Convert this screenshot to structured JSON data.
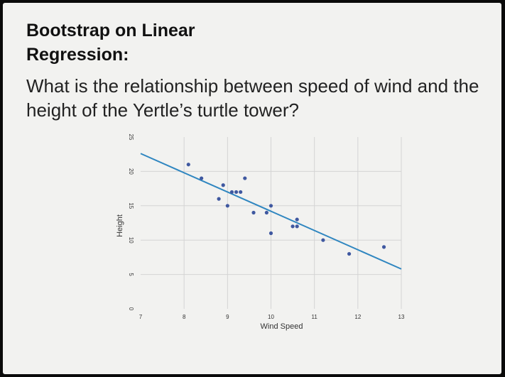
{
  "slide": {
    "title_line1": "Bootstrap on Linear",
    "title_line2": "Regression:",
    "question": "What is the relationship between speed of wind and the height of the Yertle’s turtle tower?"
  },
  "chart_data": {
    "type": "scatter",
    "xlabel": "Wind Speed",
    "ylabel": "Height",
    "xlim": [
      7,
      13
    ],
    "ylim": [
      0,
      25
    ],
    "x_ticks": [
      7,
      8,
      9,
      10,
      11,
      12,
      13
    ],
    "y_ticks": [
      0,
      5,
      10,
      15,
      20,
      25
    ],
    "grid": true,
    "points": [
      {
        "x": 8.1,
        "y": 21
      },
      {
        "x": 8.4,
        "y": 19
      },
      {
        "x": 8.8,
        "y": 16
      },
      {
        "x": 8.9,
        "y": 18
      },
      {
        "x": 9.0,
        "y": 15
      },
      {
        "x": 9.1,
        "y": 17
      },
      {
        "x": 9.2,
        "y": 17
      },
      {
        "x": 9.3,
        "y": 17
      },
      {
        "x": 9.4,
        "y": 19
      },
      {
        "x": 9.6,
        "y": 14
      },
      {
        "x": 9.9,
        "y": 14
      },
      {
        "x": 10.0,
        "y": 15
      },
      {
        "x": 10.0,
        "y": 11
      },
      {
        "x": 10.5,
        "y": 12
      },
      {
        "x": 10.6,
        "y": 12
      },
      {
        "x": 10.6,
        "y": 13
      },
      {
        "x": 11.2,
        "y": 10
      },
      {
        "x": 11.8,
        "y": 8
      },
      {
        "x": 12.6,
        "y": 9
      }
    ],
    "regression_line": {
      "x": [
        7,
        13
      ],
      "y": [
        22.6,
        5.8
      ]
    },
    "colors": {
      "points": "#3f58a0",
      "line": "#2f86c0",
      "grid": "#d4d4d4"
    }
  }
}
